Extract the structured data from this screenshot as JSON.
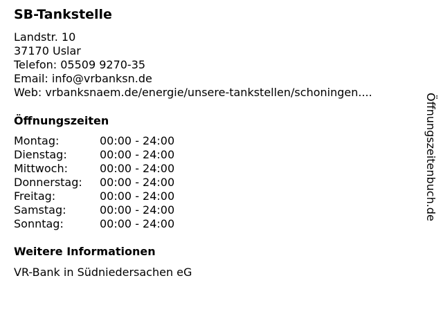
{
  "title": "SB-Tankstelle",
  "address": {
    "street": "Landstr. 10",
    "city": "37170 Uslar",
    "phone": "Telefon: 05509 9270-35",
    "email": "Email: info@vrbanksn.de",
    "web": "Web: vrbanksnaem.de/energie/unsere-tankstellen/schoningen...."
  },
  "hours_heading": "Öffnungszeiten",
  "hours": [
    {
      "day": "Montag:",
      "time": "00:00 - 24:00"
    },
    {
      "day": "Dienstag:",
      "time": "00:00 - 24:00"
    },
    {
      "day": "Mittwoch:",
      "time": "00:00 - 24:00"
    },
    {
      "day": "Donnerstag:",
      "time": "00:00 - 24:00"
    },
    {
      "day": "Freitag:",
      "time": "00:00 - 24:00"
    },
    {
      "day": "Samstag:",
      "time": "00:00 - 24:00"
    },
    {
      "day": "Sonntag:",
      "time": "00:00 - 24:00"
    }
  ],
  "info_heading": "Weitere Informationen",
  "info_text": "VR-Bank in Südniedersachen eG",
  "watermark": "Öffnungszeitenbuch.de"
}
